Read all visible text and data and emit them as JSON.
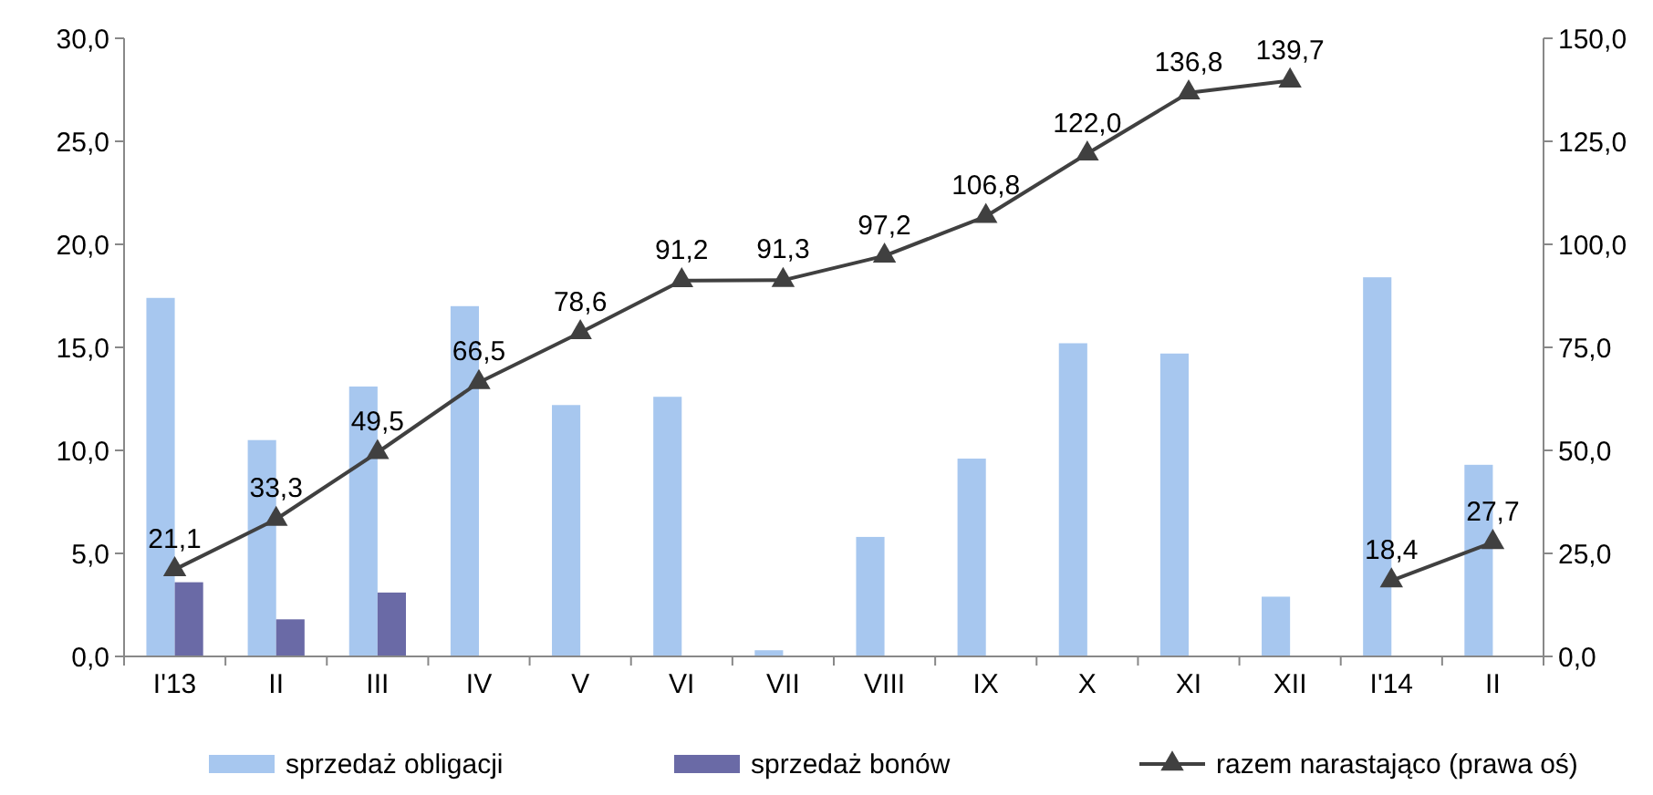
{
  "chart_data": {
    "type": "bar",
    "categories": [
      "I'13",
      "II",
      "III",
      "IV",
      "V",
      "VI",
      "VII",
      "VIII",
      "IX",
      "X",
      "XI",
      "XII",
      "I'14",
      "II"
    ],
    "series": [
      {
        "name": "sprzedaż obligacji",
        "color": "#a7c7ef",
        "values": [
          17.4,
          10.5,
          13.1,
          17.0,
          12.2,
          12.6,
          0.3,
          5.8,
          9.6,
          15.2,
          14.7,
          2.9,
          18.4,
          9.3
        ]
      },
      {
        "name": "sprzedaż bonów",
        "color": "#6a6aa6",
        "values": [
          3.6,
          1.8,
          3.1,
          null,
          null,
          null,
          null,
          null,
          null,
          null,
          null,
          null,
          null,
          null
        ]
      },
      {
        "name": "razem narastająco (prawa oś)",
        "type": "line",
        "axis": "y2",
        "color": "#404040",
        "marker": "triangle",
        "values": [
          21.1,
          33.3,
          49.5,
          66.5,
          78.6,
          91.2,
          91.3,
          97.2,
          106.8,
          122.0,
          136.8,
          139.7,
          null,
          null
        ],
        "value_labels": [
          "21,1",
          "33,3",
          "49,5",
          "66,5",
          "78,6",
          "91,2",
          "91,3",
          "97,2",
          "106,8",
          "122,0",
          "136,8",
          "139,7",
          null,
          null
        ]
      },
      {
        "type": "line",
        "axis": "y2",
        "color": "#404040",
        "marker": "triangle",
        "values": [
          null,
          null,
          null,
          null,
          null,
          null,
          null,
          null,
          null,
          null,
          null,
          null,
          18.4,
          27.7
        ],
        "value_labels": [
          null,
          null,
          null,
          null,
          null,
          null,
          null,
          null,
          null,
          null,
          null,
          null,
          "18,4",
          "27,7"
        ]
      }
    ],
    "ylim": [
      0,
      30
    ],
    "yticks": [
      {
        "value": 0,
        "label": "0,0"
      },
      {
        "value": 5,
        "label": "5,0"
      },
      {
        "value": 10,
        "label": "10,0"
      },
      {
        "value": 15,
        "label": "15,0"
      },
      {
        "value": 20,
        "label": "20,0"
      },
      {
        "value": 25,
        "label": "25,0"
      },
      {
        "value": 30,
        "label": "30,0"
      }
    ],
    "y2lim": [
      0,
      150
    ],
    "y2ticks": [
      {
        "value": 0,
        "label": "0,0"
      },
      {
        "value": 25,
        "label": "25,0"
      },
      {
        "value": 50,
        "label": "50,0"
      },
      {
        "value": 75,
        "label": "75,0"
      },
      {
        "value": 100,
        "label": "100,0"
      },
      {
        "value": 125,
        "label": "125,0"
      },
      {
        "value": 150,
        "label": "150,0"
      }
    ],
    "grid": false,
    "legend": "bottom"
  }
}
